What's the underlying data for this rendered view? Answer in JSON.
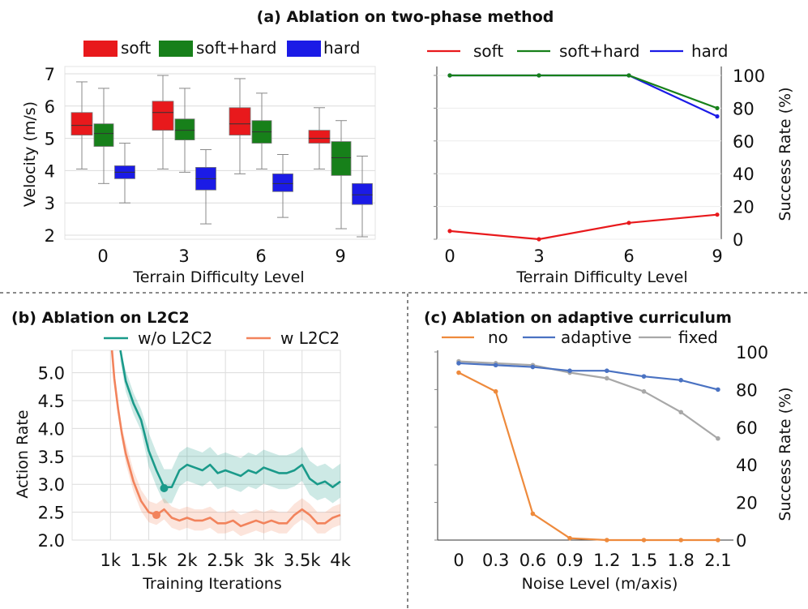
{
  "figure": {
    "title_a": "(a) Ablation on two-phase method",
    "title_b": "(b) Ablation on L2C2",
    "title_c": "(c) Ablation on adaptive curriculum"
  },
  "colors": {
    "soft": "#e8191c",
    "soft_hard": "#17801a",
    "hard": "#1b1be6",
    "no_l2c2": "#1a9a8a",
    "w_l2c2": "#f2835c",
    "no": "#ee8a3c",
    "adaptive": "#4a72c2",
    "fixed": "#a8a8a8"
  },
  "chart_data": [
    {
      "id": "a_box",
      "type": "box",
      "legend": [
        "soft",
        "soft+hard",
        "hard"
      ],
      "categories": [
        "0",
        "3",
        "6",
        "9"
      ],
      "xlabel": "Terrain Difficulty Level",
      "ylabel": "Velocity (m/s)",
      "ylim": [
        1.8,
        7.2
      ],
      "yticks": [
        "2",
        "3",
        "4",
        "5",
        "6",
        "7"
      ],
      "series": [
        {
          "name": "soft",
          "boxes": [
            {
              "min": 4.05,
              "q1": 5.1,
              "median": 5.4,
              "q3": 5.8,
              "max": 6.75
            },
            {
              "min": 4.05,
              "q1": 5.25,
              "median": 5.8,
              "q3": 6.15,
              "max": 6.95
            },
            {
              "min": 3.9,
              "q1": 5.1,
              "median": 5.45,
              "q3": 5.95,
              "max": 6.85
            },
            {
              "min": 4.05,
              "q1": 4.85,
              "median": 5.0,
              "q3": 5.25,
              "max": 5.95
            }
          ]
        },
        {
          "name": "soft+hard",
          "boxes": [
            {
              "min": 3.6,
              "q1": 4.75,
              "median": 5.15,
              "q3": 5.45,
              "max": 6.55
            },
            {
              "min": 3.95,
              "q1": 4.95,
              "median": 5.25,
              "q3": 5.6,
              "max": 6.55
            },
            {
              "min": 4.05,
              "q1": 4.85,
              "median": 5.2,
              "q3": 5.55,
              "max": 6.4
            },
            {
              "min": 2.2,
              "q1": 3.85,
              "median": 4.4,
              "q3": 4.9,
              "max": 5.55
            }
          ]
        },
        {
          "name": "hard",
          "boxes": [
            {
              "min": 3.0,
              "q1": 3.75,
              "median": 3.95,
              "q3": 4.15,
              "max": 4.85
            },
            {
              "min": 2.35,
              "q1": 3.4,
              "median": 3.75,
              "q3": 4.1,
              "max": 4.65
            },
            {
              "min": 2.55,
              "q1": 3.35,
              "median": 3.6,
              "q3": 3.9,
              "max": 4.5
            },
            {
              "min": 1.95,
              "q1": 2.95,
              "median": 3.25,
              "q3": 3.6,
              "max": 4.45
            }
          ]
        }
      ]
    },
    {
      "id": "a_line",
      "type": "line",
      "x": [
        "0",
        "3",
        "6",
        "9"
      ],
      "xlabel": "Terrain Difficulty Level",
      "ylabel": "Success Rate (%)",
      "ylim": [
        0,
        100
      ],
      "yticks": [
        "0",
        "20",
        "40",
        "60",
        "80",
        "100"
      ],
      "series": [
        {
          "name": "soft",
          "values": [
            5,
            0,
            10,
            15
          ]
        },
        {
          "name": "soft+hard",
          "values": [
            100,
            100,
            100,
            80
          ]
        },
        {
          "name": "hard",
          "values": [
            100,
            100,
            100,
            75
          ]
        }
      ]
    },
    {
      "id": "b_line",
      "type": "line",
      "xlabel": "Training Iterations",
      "ylabel": "Action Rate",
      "xticks": [
        "1k",
        "1.5k",
        "2k",
        "2.5k",
        "3k",
        "3.5k",
        "4k"
      ],
      "yticks": [
        "2.0",
        "2.5",
        "3.0",
        "3.5",
        "4.0",
        "4.5",
        "5.0"
      ],
      "xlim": [
        500,
        4000
      ],
      "ylim": [
        2.0,
        5.4
      ],
      "series": [
        {
          "name": "w/o L2C2",
          "x": [
            1130,
            1200,
            1300,
            1400,
            1500,
            1600,
            1700,
            1800,
            1900,
            2000,
            2100,
            2200,
            2300,
            2400,
            2500,
            2600,
            2700,
            2800,
            2900,
            3000,
            3100,
            3200,
            3300,
            3400,
            3500,
            3600,
            3700,
            3800,
            3900,
            4000
          ],
          "y": [
            5.4,
            4.85,
            4.45,
            4.15,
            3.6,
            3.25,
            2.95,
            2.95,
            3.25,
            3.35,
            3.3,
            3.25,
            3.35,
            3.2,
            3.25,
            3.2,
            3.15,
            3.25,
            3.2,
            3.3,
            3.25,
            3.2,
            3.2,
            3.25,
            3.35,
            3.1,
            3.0,
            3.05,
            2.95,
            3.05
          ]
        },
        {
          "name": "w L2C2",
          "x": [
            1020,
            1050,
            1100,
            1150,
            1200,
            1300,
            1400,
            1500,
            1600,
            1700,
            1800,
            1900,
            2000,
            2100,
            2200,
            2300,
            2400,
            2500,
            2600,
            2700,
            2800,
            2900,
            3000,
            3100,
            3200,
            3300,
            3400,
            3500,
            3600,
            3700,
            3800,
            3900,
            4000
          ],
          "y": [
            5.4,
            4.9,
            4.35,
            3.9,
            3.55,
            3.05,
            2.7,
            2.5,
            2.45,
            2.55,
            2.4,
            2.35,
            2.4,
            2.35,
            2.35,
            2.4,
            2.3,
            2.3,
            2.35,
            2.25,
            2.3,
            2.35,
            2.3,
            2.35,
            2.3,
            2.3,
            2.45,
            2.55,
            2.45,
            2.3,
            2.3,
            2.4,
            2.45
          ]
        }
      ]
    },
    {
      "id": "c_line",
      "type": "line",
      "x": [
        "0",
        "0.3",
        "0.6",
        "0.9",
        "1.2",
        "1.5",
        "1.8",
        "2.1"
      ],
      "xlabel": "Noise Level (m/axis)",
      "ylabel": "Success Rate (%)",
      "ylim": [
        0,
        100
      ],
      "yticks": [
        "0",
        "20",
        "40",
        "60",
        "80",
        "100"
      ],
      "series": [
        {
          "name": "no",
          "values": [
            89,
            79,
            14,
            1,
            0,
            0,
            0,
            0
          ]
        },
        {
          "name": "adaptive",
          "values": [
            94,
            93,
            92,
            90,
            90,
            87,
            85,
            80
          ]
        },
        {
          "name": "fixed",
          "values": [
            95,
            94,
            93,
            89,
            86,
            79,
            68,
            54
          ]
        }
      ]
    }
  ]
}
